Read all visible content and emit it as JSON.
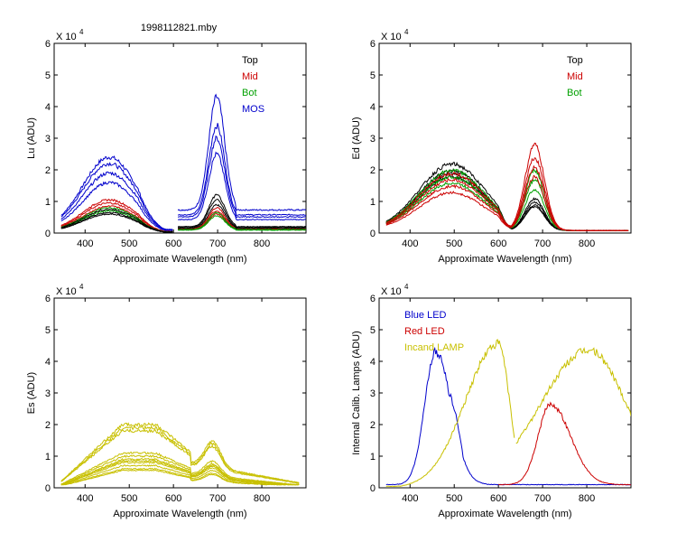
{
  "figure_title": "1998112821.mby",
  "chart_data": [
    {
      "id": "lu",
      "type": "line",
      "ylabel": "Lu (ADU)",
      "xlabel": "Approximate Wavelength (nm)",
      "exponent_base": "X 10",
      "exponent_power": "4",
      "xlim": [
        330,
        900
      ],
      "ylim": [
        0,
        6
      ],
      "xticks": [
        400,
        500,
        600,
        700,
        800
      ],
      "yticks": [
        0,
        1,
        2,
        3,
        4,
        5,
        6
      ],
      "legend": [
        {
          "label": "Top",
          "color": "#000000"
        },
        {
          "label": "Mid",
          "color": "#cc0000"
        },
        {
          "label": "Bot",
          "color": "#00a000"
        },
        {
          "label": "MOS",
          "color": "#0000cc"
        }
      ],
      "series": [
        {
          "name": "MOS",
          "color": "#0000cc",
          "count": 4,
          "peaks": [
            2.4,
            2.2,
            1.9,
            1.6
          ],
          "peaks2": [
            4.3,
            3.4,
            3.0,
            2.5
          ]
        },
        {
          "name": "Mid",
          "color": "#cc0000",
          "count": 3,
          "peaks": [
            1.05,
            0.95,
            0.85
          ],
          "peaks2": [
            0.8,
            0.7,
            0.6
          ]
        },
        {
          "name": "Bot",
          "color": "#00a000",
          "count": 2,
          "peaks": [
            0.8,
            0.7
          ],
          "peaks2": [
            0.65,
            0.55
          ]
        },
        {
          "name": "Top",
          "color": "#000000",
          "count": 3,
          "peaks": [
            0.75,
            0.65,
            0.6
          ],
          "peaks2": [
            1.2,
            1.05,
            0.9
          ]
        }
      ]
    },
    {
      "id": "ed",
      "type": "line",
      "ylabel": "Ed  (ADU)",
      "xlabel": "Approximate Wavelength (nm)",
      "exponent_base": "X 10",
      "exponent_power": "4",
      "xlim": [
        330,
        900
      ],
      "ylim": [
        0,
        6
      ],
      "xticks": [
        400,
        500,
        600,
        700,
        800
      ],
      "yticks": [
        0,
        1,
        2,
        3,
        4,
        5,
        6
      ],
      "legend": [
        {
          "label": "Top",
          "color": "#000000"
        },
        {
          "label": "Mid",
          "color": "#cc0000"
        },
        {
          "label": "Bot",
          "color": "#00a000"
        }
      ],
      "series": [
        {
          "name": "Top",
          "color": "#000000",
          "count": 4,
          "peaks": [
            2.1,
            1.9,
            1.8,
            1.7
          ],
          "peaks2": [
            1.0,
            0.9,
            0.8,
            0.75
          ]
        },
        {
          "name": "Bot",
          "color": "#00a000",
          "count": 3,
          "peaks": [
            1.9,
            1.7,
            1.5
          ],
          "peaks2": [
            1.9,
            1.6,
            1.3
          ]
        },
        {
          "name": "Mid",
          "color": "#cc0000",
          "count": 4,
          "peaks": [
            1.8,
            1.6,
            1.4,
            1.2
          ],
          "peaks2": [
            2.7,
            2.3,
            2.0,
            1.7
          ]
        }
      ]
    },
    {
      "id": "es",
      "type": "line",
      "ylabel": "Es  (ADU)",
      "xlabel": "Approximate Wavelength (nm)",
      "exponent_base": "X 10",
      "exponent_power": "4",
      "xlim": [
        330,
        900
      ],
      "ylim": [
        0,
        6
      ],
      "xticks": [
        400,
        500,
        600,
        700,
        800
      ],
      "yticks": [
        0,
        1,
        2,
        3,
        4,
        5,
        6
      ],
      "legend": [],
      "series": [
        {
          "name": "Es",
          "color": "#c8c000",
          "count": 11,
          "peaks": [
            2.0,
            1.9,
            1.8,
            1.1,
            1.0,
            0.9,
            0.85,
            0.8,
            0.7,
            0.6,
            0.55
          ],
          "peaks2": [
            1.75,
            1.65,
            1.55,
            1.0,
            0.9,
            0.85,
            0.8,
            0.75,
            0.65,
            0.55,
            0.5
          ]
        }
      ]
    },
    {
      "id": "cal",
      "type": "line",
      "ylabel": "Internal Calib. Lamps (ADU)",
      "xlabel": "Approximate Wavelength (nm)",
      "exponent_base": "X 10",
      "exponent_power": "4",
      "xlim": [
        330,
        900
      ],
      "ylim": [
        0,
        6
      ],
      "xticks": [
        400,
        500,
        600,
        700,
        800
      ],
      "yticks": [
        0,
        1,
        2,
        3,
        4,
        5,
        6
      ],
      "legend": [
        {
          "label": "Blue LED",
          "color": "#0000cc"
        },
        {
          "label": "Red LED",
          "color": "#cc0000"
        },
        {
          "label": "Incand LAMP",
          "color": "#c8c000"
        }
      ],
      "series": [
        {
          "name": "Blue LED",
          "color": "#0000cc",
          "peak_nm": 458,
          "peak": 4.3
        },
        {
          "name": "Red LED",
          "color": "#cc0000",
          "peak_nm": 718,
          "peak": 2.65
        },
        {
          "name": "Incand LAMP (short)",
          "color": "#c8c000",
          "peak_nm": 600,
          "peak": 4.55
        },
        {
          "name": "Incand LAMP (long)",
          "color": "#c8c000",
          "peak_nm": 805,
          "peak": 4.35
        }
      ]
    }
  ]
}
